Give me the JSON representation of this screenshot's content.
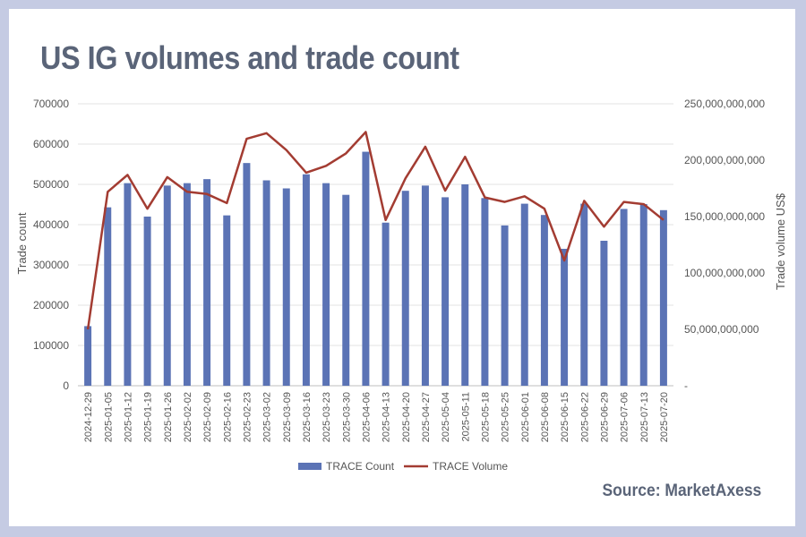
{
  "page": {
    "title": "US IG volumes and trade count",
    "source": "Source: MarketAxess",
    "colors": {
      "background": "#c5cbe3",
      "panel": "#ffffff",
      "title": "#5a6478"
    }
  },
  "chart_data": {
    "type": "bar",
    "title": "US IG volumes and trade count",
    "ylabel": "Trade count",
    "y2label": "Trade volume US$",
    "ylim": [
      0,
      700000
    ],
    "y2lim": [
      0,
      250000000000
    ],
    "yticks": [
      "0",
      "100000",
      "200000",
      "300000",
      "400000",
      "500000",
      "600000",
      "700000"
    ],
    "y2ticks": [
      "-",
      "50,000,000,000",
      "100,000,000,000",
      "150,000,000,000",
      "200,000,000,000",
      "250,000,000,000"
    ],
    "grid": true,
    "legend": "bottom",
    "categories": [
      "2024-12-29",
      "2025-01-05",
      "2025-01-12",
      "2025-01-19",
      "2025-01-26",
      "2025-02-02",
      "2025-02-09",
      "2025-02-16",
      "2025-02-23",
      "2025-03-02",
      "2025-03-09",
      "2025-03-16",
      "2025-03-23",
      "2025-03-30",
      "2025-04-06",
      "2025-04-13",
      "2025-04-20",
      "2025-04-27",
      "2025-05-04",
      "2025-05-11",
      "2025-05-18",
      "2025-05-25",
      "2025-06-01",
      "2025-06-08",
      "2025-06-15",
      "2025-06-22",
      "2025-06-29",
      "2025-07-06",
      "2025-07-13",
      "2025-07-20"
    ],
    "series": [
      {
        "name": "TRACE Count",
        "type": "bar",
        "axis": "left",
        "color": "#5b73b5",
        "values": [
          148000,
          443000,
          503000,
          420000,
          497000,
          503000,
          513000,
          423000,
          553000,
          510000,
          490000,
          525000,
          503000,
          474000,
          581000,
          405000,
          484000,
          497000,
          468000,
          500000,
          466000,
          398000,
          452000,
          424000,
          340000,
          452000,
          360000,
          439000,
          451000,
          436000
        ]
      },
      {
        "name": "TRACE Volume",
        "type": "line",
        "axis": "right",
        "color": "#a33c32",
        "values": [
          50000000000,
          172000000000,
          187000000000,
          157000000000,
          185000000000,
          172000000000,
          170000000000,
          162000000000,
          219000000000,
          224000000000,
          209000000000,
          189000000000,
          195000000000,
          206000000000,
          225000000000,
          147000000000,
          184000000000,
          212000000000,
          173000000000,
          203000000000,
          167000000000,
          163000000000,
          168000000000,
          157000000000,
          111000000000,
          164000000000,
          141000000000,
          163000000000,
          161000000000,
          147000000000
        ]
      }
    ]
  }
}
